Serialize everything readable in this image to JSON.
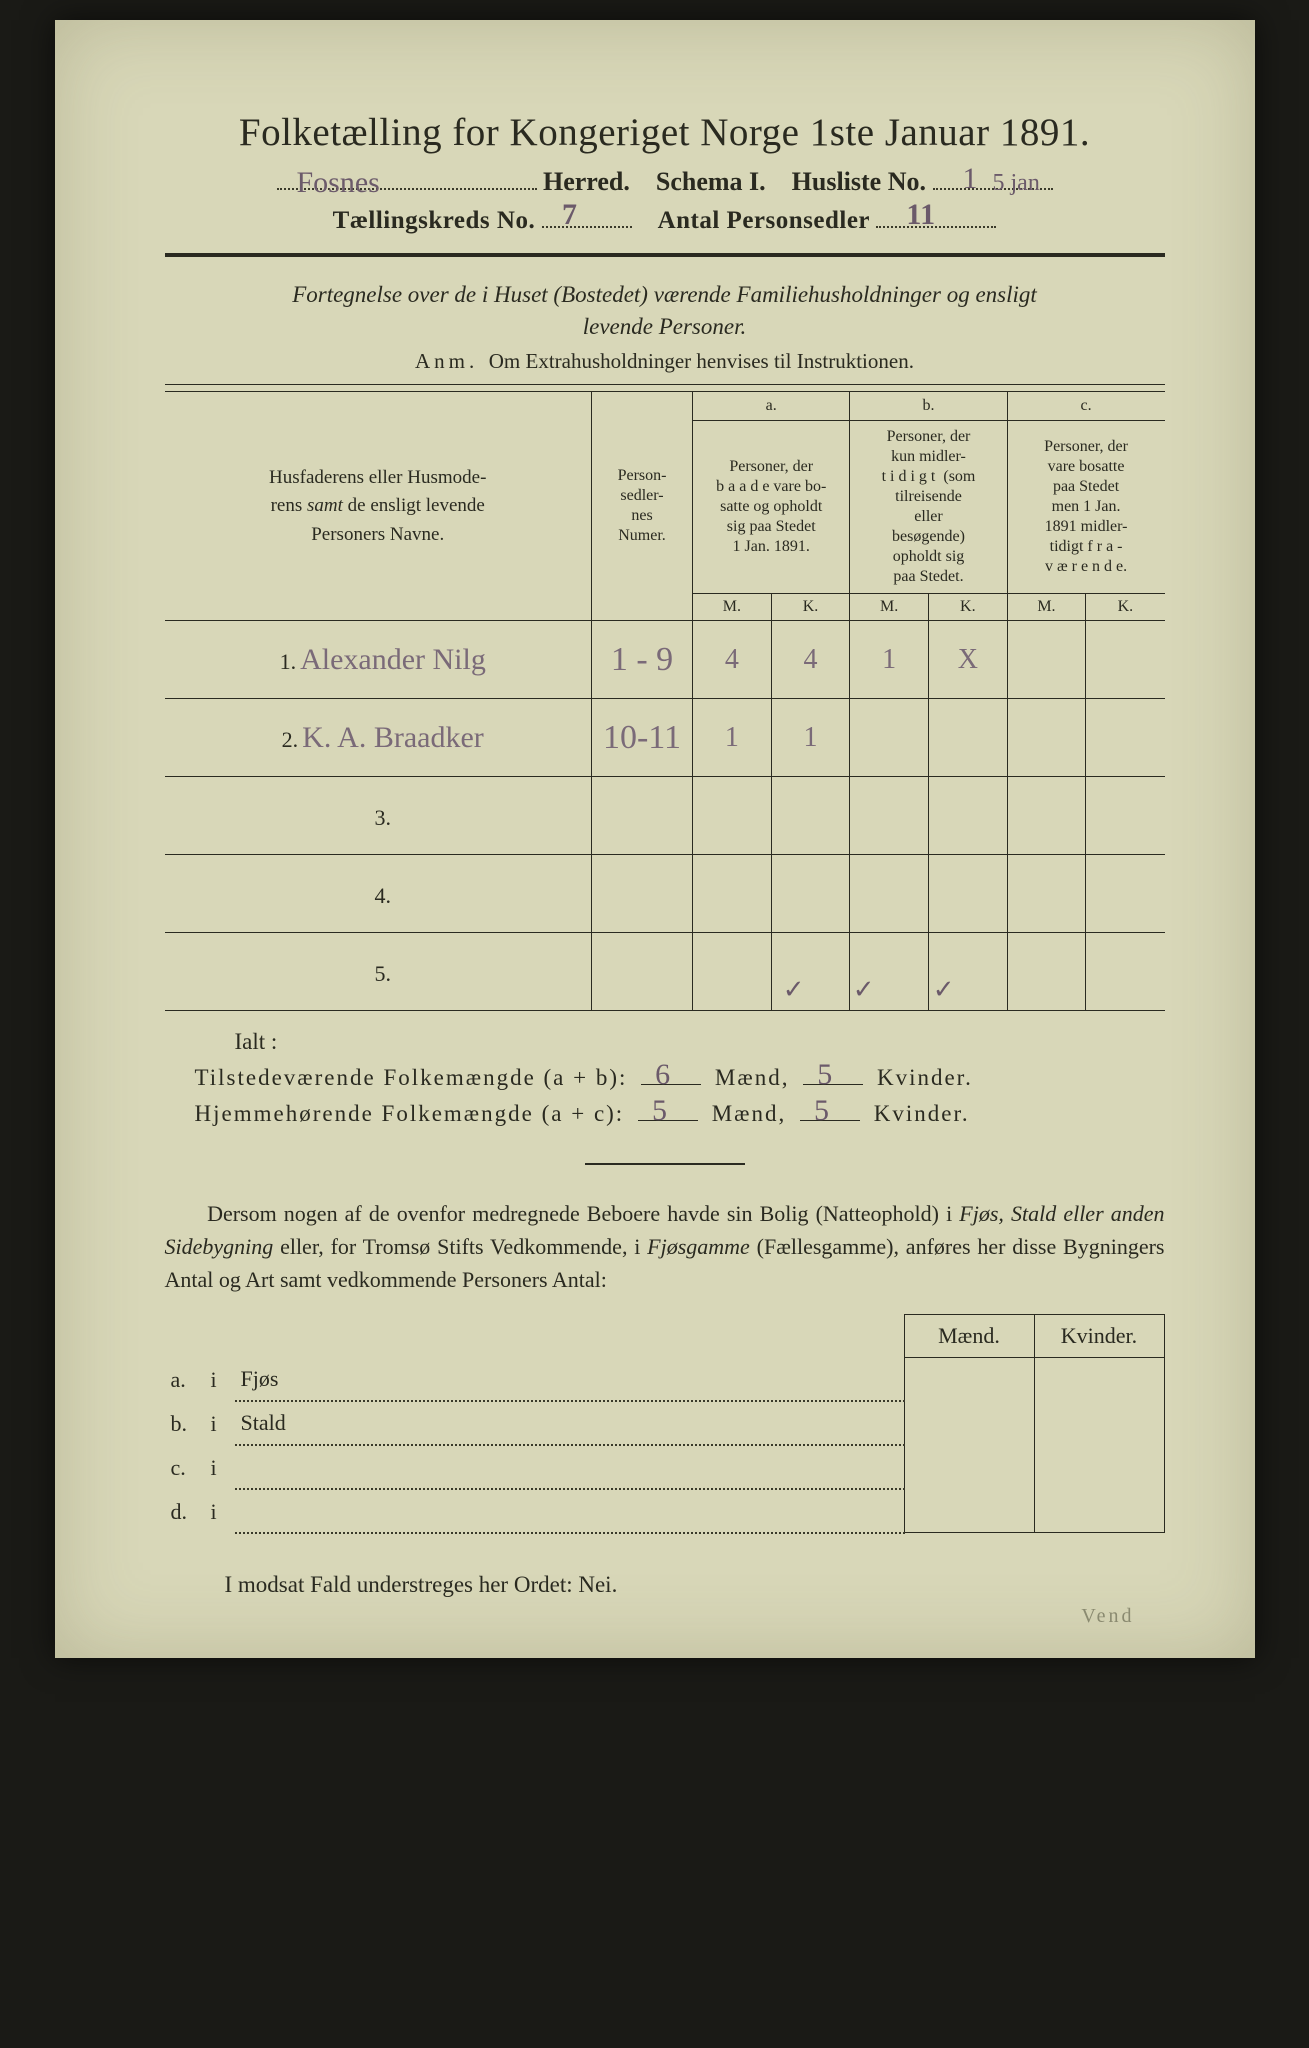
{
  "title": "Folketælling for Kongeriget Norge 1ste Januar 1891.",
  "header": {
    "herred_label": "Herred.",
    "herred_value": "Fosnes",
    "schema": "Schema I.",
    "husliste_label": "Husliste No.",
    "husliste_value": "1",
    "husliste_extra": "5 jan",
    "kreds_label": "Tællingskreds No.",
    "kreds_value": "7",
    "personsedler_label": "Antal Personsedler",
    "personsedler_value": "11"
  },
  "subtitle_line1": "Fortegnelse over de i Huset (Bostedet) værende Familiehusholdninger og ensligt",
  "subtitle_line2": "levende Personer.",
  "anm_lead": "Anm.",
  "anm_text": "Om Extrahusholdninger henvises til Instruktionen.",
  "table": {
    "col_names": "Husfaderens eller Husmoderens samt de ensligt levende Personers Navne.",
    "col_numer": "Personsedlernes Numer.",
    "col_a_head": "a.",
    "col_a": "Personer, der baade vare bosatte og opholdt sig paa Stedet 1 Jan. 1891.",
    "col_b_head": "b.",
    "col_b": "Personer, der kun midlertidigt (som tilreisende eller besøgende) opholdt sig paa Stedet.",
    "col_c_head": "c.",
    "col_c": "Personer, der vare bosatte paa Stedet men 1 Jan. 1891 midlertidigt fraværende.",
    "mk_m": "M.",
    "mk_k": "K.",
    "rows": [
      {
        "n": "1.",
        "name": "Alexander Nilg",
        "numer": "1 - 9",
        "am": "4",
        "ak": "4",
        "bm": "1",
        "bk": "X",
        "cm": "",
        "ck": ""
      },
      {
        "n": "2.",
        "name": "K. A. Braadker",
        "numer": "10-11",
        "am": "1",
        "ak": "1",
        "bm": "",
        "bk": "",
        "cm": "",
        "ck": ""
      },
      {
        "n": "3.",
        "name": "",
        "numer": "",
        "am": "",
        "ak": "",
        "bm": "",
        "bk": "",
        "cm": "",
        "ck": ""
      },
      {
        "n": "4.",
        "name": "",
        "numer": "",
        "am": "",
        "ak": "",
        "bm": "",
        "bk": "",
        "cm": "",
        "ck": ""
      },
      {
        "n": "5.",
        "name": "",
        "numer": "",
        "am": "",
        "ak": "",
        "bm": "",
        "bk": "",
        "cm": "",
        "ck": ""
      }
    ],
    "checks": [
      "✓",
      "✓",
      "✓"
    ]
  },
  "ialt": "Ialt :",
  "sums": {
    "tilst_label": "Tilstedeværende Folkemængde (a + b):",
    "tilst_m": "6",
    "tilst_k": "5",
    "hjem_label": "Hjemmehørende Folkemængde (a + c):",
    "hjem_m": "5",
    "hjem_k": "5",
    "maend": "Mænd,",
    "kvinder": "Kvinder."
  },
  "para": {
    "t1": "Dersom nogen af de ovenfor medregnede Beboere havde sin Bolig (Natteophold) i ",
    "i1": "Fjøs, Stald eller anden Sidebygning",
    "t2": " eller, for Tromsø Stifts Vedkommende, i ",
    "i2": "Fjøsgamme",
    "t3": " (Fællesgamme), anføres her disse Bygningers Antal og Art samt vedkommende Personers Antal:"
  },
  "bottom": {
    "maend": "Mænd.",
    "kvinder": "Kvinder.",
    "rows": [
      {
        "n": "a.",
        "i": "i",
        "label": "Fjøs"
      },
      {
        "n": "b.",
        "i": "i",
        "label": "Stald"
      },
      {
        "n": "c.",
        "i": "i",
        "label": ""
      },
      {
        "n": "d.",
        "i": "i",
        "label": ""
      }
    ]
  },
  "nei_line": "I modsat Fald understreges her Ordet: ",
  "nei": "Nei.",
  "vend": "Vend"
}
